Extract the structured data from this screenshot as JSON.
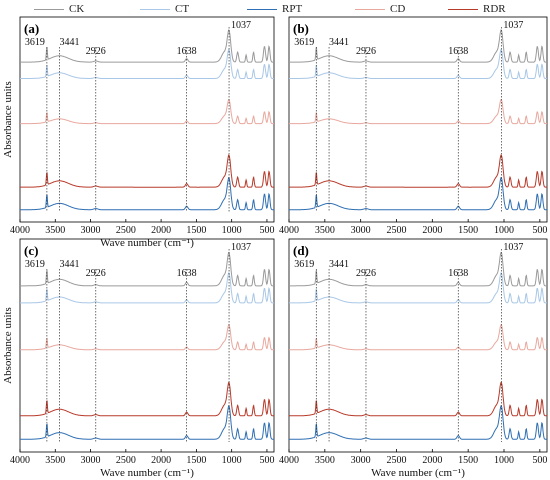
{
  "legend": [
    {
      "label": "CK",
      "color": "#9a9a9a"
    },
    {
      "label": "CT",
      "color": "#a9c7e6"
    },
    {
      "label": "RPT",
      "color": "#2f6fb3"
    },
    {
      "label": "CD",
      "color": "#e8a89e"
    },
    {
      "label": "RDR",
      "color": "#b83a2a"
    }
  ],
  "chart_data": [
    {
      "type": "line",
      "panel_label": "(a)",
      "xlabel": "Wave number (cm⁻¹)",
      "ylabel": "Absorbance units",
      "xlim": [
        4000,
        400
      ],
      "xticks": [
        4000,
        3500,
        3000,
        2500,
        2000,
        1500,
        1000,
        500
      ],
      "annotations": [
        3619,
        3441,
        2926,
        1638,
        1037
      ],
      "series_order": [
        "CK",
        "CT",
        "CD",
        "RDR",
        "RPT"
      ]
    },
    {
      "type": "line",
      "panel_label": "(b)",
      "xlabel": "",
      "ylabel": "",
      "xlim": [
        4000,
        400
      ],
      "xticks": [
        4000,
        3500,
        3000,
        2500,
        2000,
        1500,
        1000,
        500
      ],
      "annotations": [
        3619,
        3441,
        2926,
        1638,
        1037
      ],
      "series_order": [
        "CK",
        "CT",
        "CD",
        "RDR",
        "RPT"
      ]
    },
    {
      "type": "line",
      "panel_label": "(c)",
      "xlabel": "Wave number (cm⁻¹)",
      "ylabel": "Absorbance units",
      "xlim": [
        4000,
        400
      ],
      "xticks": [
        4000,
        3500,
        3000,
        2500,
        2000,
        1500,
        1000,
        500
      ],
      "annotations": [
        3619,
        3441,
        2926,
        1638,
        1037
      ],
      "series_order": [
        "CK",
        "CT",
        "CD",
        "RDR",
        "RPT"
      ]
    },
    {
      "type": "line",
      "panel_label": "(d)",
      "xlabel": "Wave number (cm⁻¹)",
      "ylabel": "",
      "xlim": [
        4000,
        400
      ],
      "xticks": [
        4000,
        3500,
        3000,
        2500,
        2000,
        1500,
        1000,
        500
      ],
      "annotations": [
        3619,
        3441,
        2926,
        1638,
        1037
      ],
      "series_order": [
        "CK",
        "CT",
        "CD",
        "RDR",
        "RPT"
      ]
    }
  ]
}
